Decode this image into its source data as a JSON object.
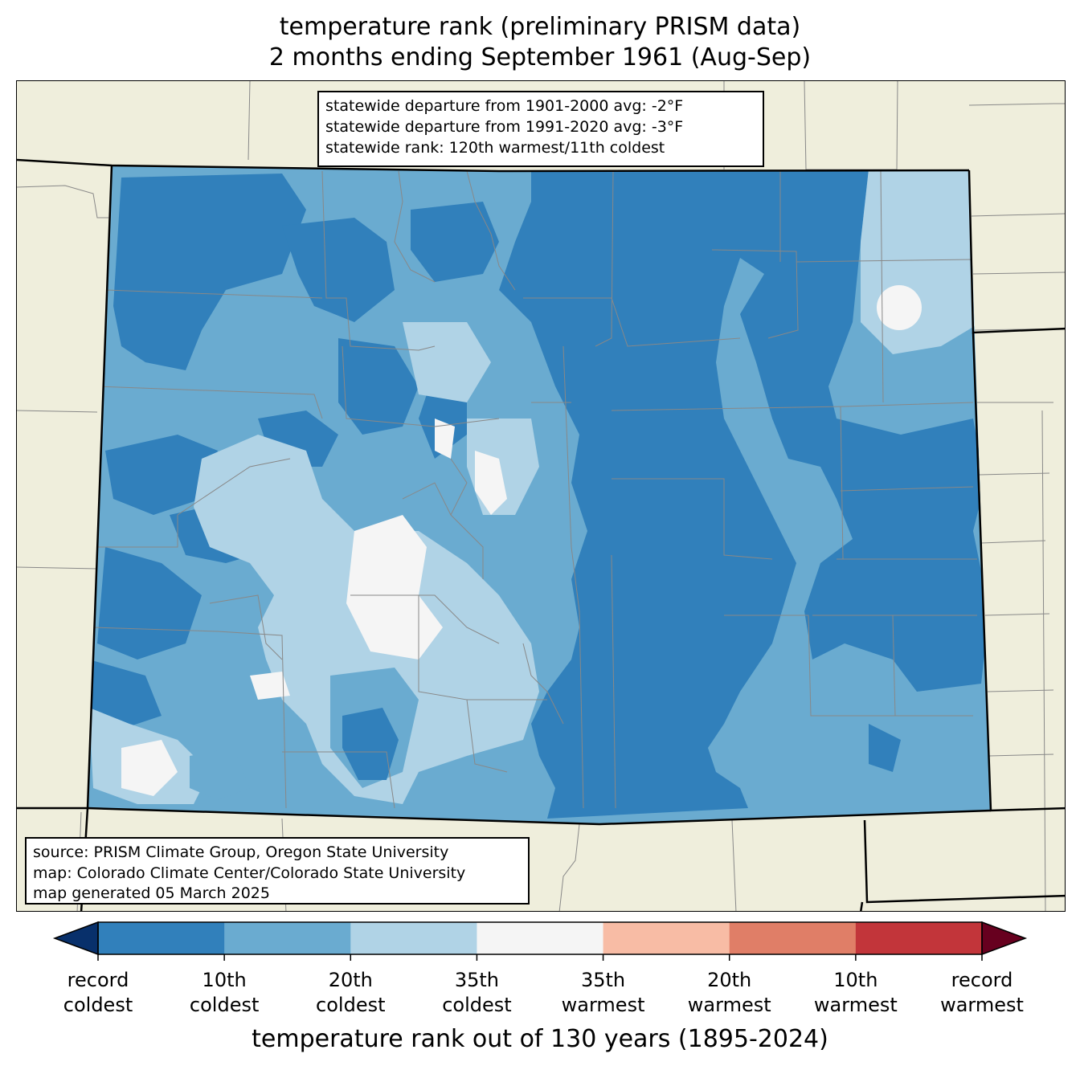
{
  "title": {
    "line1": "temperature rank (preliminary PRISM data)",
    "line2": "2 months ending September 1961 (Aug-Sep)"
  },
  "stats": {
    "line1": "statewide departure from 1901-2000 avg: -2°F",
    "line2": "statewide departure from 1991-2020 avg: -3°F",
    "line3": "statewide rank: 120th warmest/11th coldest"
  },
  "source": {
    "line1": "source: PRISM Climate Group, Oregon State University",
    "line2": "map: Colorado Climate Center/Colorado State University",
    "line3": "map generated 05 March 2025"
  },
  "colorbar": {
    "title": "temperature rank out of 130 years (1895-2024)",
    "under_color": "#08306b",
    "over_color": "#67001f",
    "colors": [
      "#3180bb",
      "#6aabd0",
      "#b0d3e6",
      "#f5f5f5",
      "#f8bca5",
      "#e07e67",
      "#c2353a"
    ],
    "labels": [
      {
        "line1": "record",
        "line2": "coldest"
      },
      {
        "line1": "10th",
        "line2": "coldest"
      },
      {
        "line1": "20th",
        "line2": "coldest"
      },
      {
        "line1": "35th",
        "line2": "coldest"
      },
      {
        "line1": "35th",
        "line2": "warmest"
      },
      {
        "line1": "20th",
        "line2": "warmest"
      },
      {
        "line1": "10th",
        "line2": "warmest"
      },
      {
        "line1": "record",
        "line2": "warmest"
      }
    ]
  },
  "map": {
    "background_color": "#efeedc",
    "dominant_rank_class": "10th coldest"
  }
}
